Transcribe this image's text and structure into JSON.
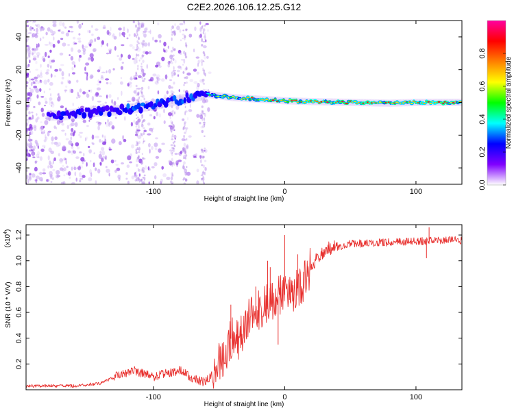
{
  "title": "C2E2.2026.106.12.25.G12",
  "colors": {
    "snr_line": "#e8312f",
    "frame": "#000000"
  },
  "chart_data": [
    {
      "type": "heatmap",
      "name": "spectrogram",
      "xlabel": "Height of straight line (km)",
      "ylabel": "Frequency (Hz)",
      "xlim": [
        -197,
        135
      ],
      "ylim": [
        -50,
        50
      ],
      "x_ticks": [
        -100,
        0,
        100
      ],
      "x_tick_labels": [
        "-100",
        "0",
        "100"
      ],
      "y_ticks": [
        -40,
        -20,
        0,
        20,
        40
      ],
      "y_tick_labels": [
        "-40",
        "-20",
        "0",
        "20",
        "40"
      ],
      "colorbar": {
        "label": "Normalized spectral amplitude",
        "range": [
          0,
          1
        ],
        "ticks": [
          0.0,
          0.2,
          0.4,
          0.6,
          0.8
        ],
        "tick_labels": [
          "0.0",
          "0.2",
          "0.4",
          "0.6",
          "0.8"
        ],
        "colormap": [
          "#ffffff",
          "#8000ff",
          "#0000ff",
          "#00ffff",
          "#00ff00",
          "#ffff00",
          "#ff8000",
          "#ff0000",
          "#ff00a0"
        ]
      },
      "ridge": [
        {
          "x": -170,
          "y": -8
        },
        {
          "x": -150,
          "y": -6
        },
        {
          "x": -130,
          "y": -5
        },
        {
          "x": -110,
          "y": -3
        },
        {
          "x": -90,
          "y": 0
        },
        {
          "x": -70,
          "y": 3
        },
        {
          "x": -60,
          "y": 5
        },
        {
          "x": -50,
          "y": 4
        },
        {
          "x": -40,
          "y": 3
        },
        {
          "x": -20,
          "y": 2
        },
        {
          "x": 0,
          "y": 1
        },
        {
          "x": 20,
          "y": 0.5
        },
        {
          "x": 50,
          "y": 0
        },
        {
          "x": 80,
          "y": -0.5
        },
        {
          "x": 100,
          "y": 0
        },
        {
          "x": 130,
          "y": 0
        }
      ]
    },
    {
      "type": "line",
      "name": "snr",
      "xlabel": "Height of straight line (km)",
      "ylabel": "SNR (10 * V/V)",
      "y_multiplier_label": "(x10",
      "y_multiplier_exp": "4",
      "y_multiplier_close": ")",
      "xlim": [
        -197,
        135
      ],
      "ylim": [
        0,
        1.28
      ],
      "x_ticks": [
        -100,
        0,
        100
      ],
      "x_tick_labels": [
        "-100",
        "0",
        "100"
      ],
      "y_ticks": [
        0.2,
        0.4,
        0.6,
        0.8,
        1.0,
        1.2
      ],
      "y_tick_labels": [
        "0.2",
        "0.4",
        "0.6",
        "0.8",
        "1.0",
        "1.2"
      ],
      "series": [
        {
          "name": "SNR",
          "points": [
            {
              "x": -197,
              "y": 0.03
            },
            {
              "x": -160,
              "y": 0.03
            },
            {
              "x": -140,
              "y": 0.05
            },
            {
              "x": -125,
              "y": 0.12
            },
            {
              "x": -115,
              "y": 0.15
            },
            {
              "x": -100,
              "y": 0.1
            },
            {
              "x": -90,
              "y": 0.13
            },
            {
              "x": -80,
              "y": 0.15
            },
            {
              "x": -70,
              "y": 0.09
            },
            {
              "x": -62,
              "y": 0.06
            },
            {
              "x": -56,
              "y": 0.1
            },
            {
              "x": -52,
              "y": 0.17
            },
            {
              "x": -45,
              "y": 0.3
            },
            {
              "x": -40,
              "y": 0.42
            },
            {
              "x": -35,
              "y": 0.38
            },
            {
              "x": -30,
              "y": 0.5
            },
            {
              "x": -25,
              "y": 0.58
            },
            {
              "x": -18,
              "y": 0.64
            },
            {
              "x": -10,
              "y": 0.7
            },
            {
              "x": -3,
              "y": 0.73
            },
            {
              "x": 5,
              "y": 0.75
            },
            {
              "x": 12,
              "y": 0.8
            },
            {
              "x": 18,
              "y": 0.92
            },
            {
              "x": 25,
              "y": 1.04
            },
            {
              "x": 35,
              "y": 1.1
            },
            {
              "x": 50,
              "y": 1.13
            },
            {
              "x": 70,
              "y": 1.14
            },
            {
              "x": 100,
              "y": 1.15
            },
            {
              "x": 120,
              "y": 1.16
            },
            {
              "x": 135,
              "y": 1.16
            }
          ]
        }
      ],
      "spikes": [
        {
          "x": 0,
          "y": 1.2
        },
        {
          "x": -11,
          "y": 0.95
        },
        {
          "x": -22,
          "y": 0.8
        },
        {
          "x": -41,
          "y": 0.66
        },
        {
          "x": 10,
          "y": 1.05
        },
        {
          "x": -13,
          "y": 1.0
        },
        {
          "x": 110,
          "y": 1.26
        },
        {
          "x": 108,
          "y": 1.02
        },
        {
          "x": -5,
          "y": 0.35
        }
      ]
    }
  ]
}
